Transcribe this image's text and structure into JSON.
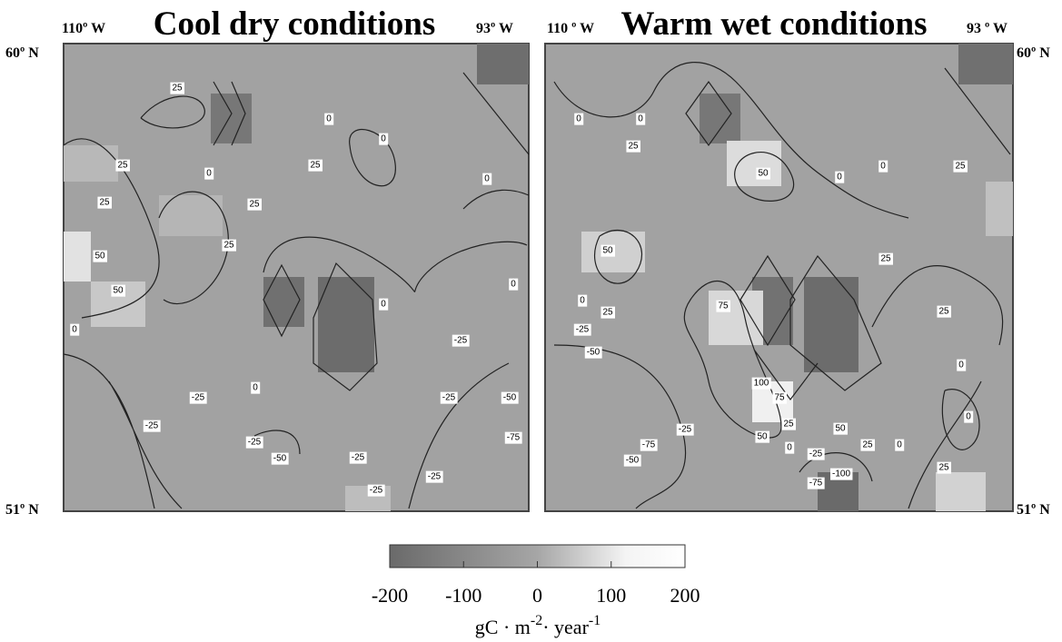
{
  "panels": [
    {
      "title": "Cool dry conditions",
      "lon_left": "110º W",
      "lon_right": "93º W",
      "contour_labels": [
        25,
        0,
        0,
        25,
        0,
        25,
        0,
        25,
        25,
        25,
        50,
        50,
        0,
        0,
        0,
        -25,
        0,
        -25,
        -25,
        -50,
        -25,
        -75,
        -25,
        -50,
        -25,
        -25,
        -25
      ]
    },
    {
      "title": "Warm wet conditions",
      "lon_left": "110 º W",
      "lon_right": "93 º W",
      "contour_labels": [
        0,
        0,
        25,
        50,
        0,
        0,
        25,
        50,
        25,
        0,
        25,
        75,
        25,
        -25,
        -50,
        0,
        100,
        75,
        -25,
        25,
        50,
        0,
        -75,
        50,
        0,
        -25,
        25,
        0,
        -50,
        -100,
        25,
        -75
      ]
    }
  ],
  "lat_top": "60º N",
  "lat_bottom": "51º N",
  "colorbar": {
    "range": [
      -200,
      200
    ],
    "ticks": [
      -200,
      -100,
      0,
      100,
      200
    ],
    "unit": [
      "gC · m",
      "-2",
      "· year",
      "-1"
    ]
  }
}
